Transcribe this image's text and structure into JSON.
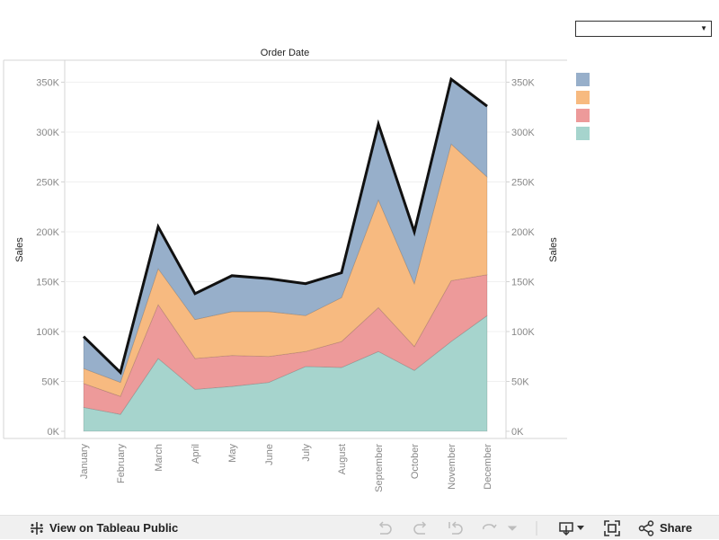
{
  "chart_data": {
    "type": "area",
    "stacked": true,
    "title": "Order Date",
    "xlabel": "",
    "ylabel": "Sales",
    "ylabel_right": "Sales",
    "ylim": [
      0,
      350000
    ],
    "y_ticks": [
      0,
      50000,
      100000,
      150000,
      200000,
      250000,
      300000,
      350000
    ],
    "y_tick_labels": [
      "0K",
      "50K",
      "100K",
      "150K",
      "200K",
      "250K",
      "300K",
      "350K"
    ],
    "categories": [
      "January",
      "February",
      "March",
      "April",
      "May",
      "June",
      "July",
      "August",
      "September",
      "October",
      "November",
      "December"
    ],
    "series": [
      {
        "color": "#a6d4cd",
        "values": [
          24000,
          17000,
          73000,
          42000,
          45000,
          49000,
          65000,
          64000,
          80000,
          61000,
          90000,
          116000
        ]
      },
      {
        "color": "#ed9a9a",
        "values": [
          24000,
          18000,
          54000,
          31000,
          31000,
          26000,
          15000,
          26000,
          44000,
          24000,
          61000,
          41000
        ]
      },
      {
        "color": "#f7ba80",
        "values": [
          15000,
          14000,
          36000,
          39000,
          44000,
          45000,
          36000,
          44000,
          108000,
          63000,
          137000,
          98000
        ]
      },
      {
        "color": "#97afca",
        "values": [
          32000,
          10000,
          42000,
          26000,
          36000,
          33000,
          32000,
          25000,
          76000,
          52000,
          65000,
          71000
        ]
      }
    ],
    "total_line": {
      "color": "#111111"
    },
    "grid": true,
    "legend": "right"
  },
  "filter": {
    "value": ""
  },
  "footer": {
    "view_label": "View on Tableau Public",
    "share_label": "Share"
  }
}
